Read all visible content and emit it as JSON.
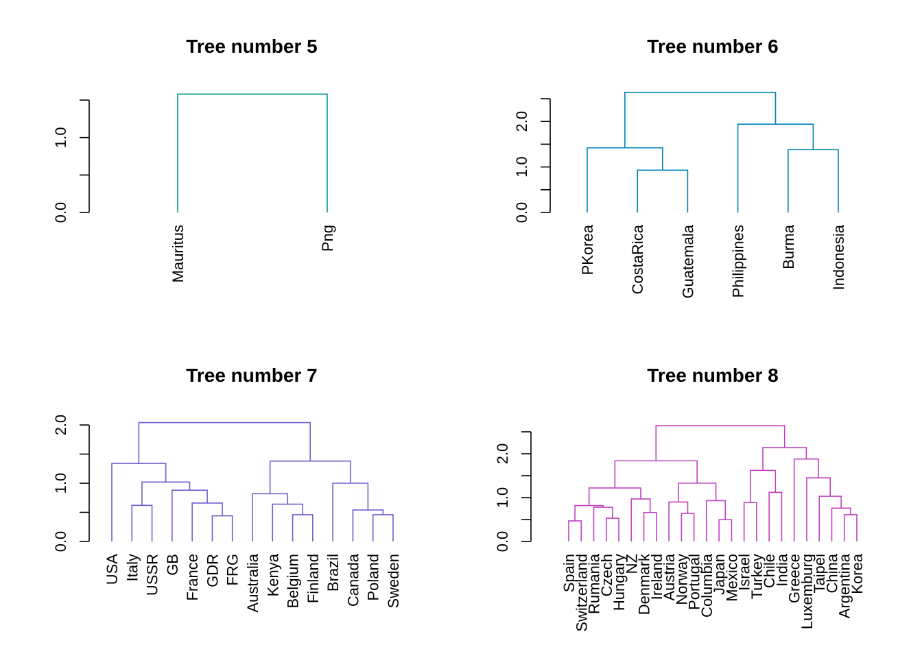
{
  "chart_data": [
    {
      "type": "dendrogram",
      "title": "Tree number 5",
      "color": "#00998A",
      "ylim": [
        0,
        1.5
      ],
      "y_ticks": [
        0,
        0.5,
        1.0,
        1.5
      ],
      "y_tick_labels": [
        "0.0",
        "",
        "1.0",
        ""
      ],
      "leaves": [
        "Mauritus",
        "Png"
      ],
      "merges": [
        {
          "a": 0,
          "b": 1,
          "h": 1.58
        }
      ]
    },
    {
      "type": "dendrogram",
      "title": "Tree number 6",
      "color": "#0082B4",
      "ylim": [
        0,
        2.5
      ],
      "y_ticks": [
        0,
        0.5,
        1.0,
        1.5,
        2.0,
        2.5
      ],
      "y_tick_labels": [
        "0.0",
        "",
        "1.0",
        "",
        "2.0",
        ""
      ],
      "leaves": [
        "PKorea",
        "CostaRica",
        "Guatemala",
        "Philippines",
        "Burma",
        "Indonesia"
      ],
      "merges": [
        {
          "a": 1,
          "b": 2,
          "h": 0.93
        },
        {
          "a": 4,
          "b": 5,
          "h": 1.38
        },
        {
          "a": 0,
          "b": "m0",
          "h": 1.42
        },
        {
          "a": 3,
          "b": "m1",
          "h": 1.94
        },
        {
          "a": "m2",
          "b": "m3",
          "h": 2.64
        }
      ]
    },
    {
      "type": "dendrogram",
      "title": "Tree number 7",
      "color": "#6F5FD0",
      "ylim": [
        0,
        2.0
      ],
      "y_ticks": [
        0,
        0.5,
        1.0,
        1.5,
        2.0
      ],
      "y_tick_labels": [
        "0.0",
        "",
        "1.0",
        "",
        "2.0"
      ],
      "leaves": [
        "USA",
        "Italy",
        "USSR",
        "GB",
        "France",
        "GDR",
        "FRG",
        "Australia",
        "Kenya",
        "Belgium",
        "Finland",
        "Brazil",
        "Canada",
        "Poland",
        "Sweden"
      ],
      "merges": [
        {
          "a": 5,
          "b": 6,
          "h": 0.44
        },
        {
          "a": 13,
          "b": 14,
          "h": 0.46
        },
        {
          "a": 9,
          "b": 10,
          "h": 0.46
        },
        {
          "a": 12,
          "b": "m1",
          "h": 0.54
        },
        {
          "a": 1,
          "b": 2,
          "h": 0.62
        },
        {
          "a": 8,
          "b": "m2",
          "h": 0.64
        },
        {
          "a": 4,
          "b": "m0",
          "h": 0.66
        },
        {
          "a": 7,
          "b": "m5",
          "h": 0.82
        },
        {
          "a": 3,
          "b": "m6",
          "h": 0.88
        },
        {
          "a": 11,
          "b": "m3",
          "h": 1.0
        },
        {
          "a": "m4",
          "b": "m8",
          "h": 1.02
        },
        {
          "a": 0,
          "b": "m10",
          "h": 1.34
        },
        {
          "a": "m7",
          "b": "m9",
          "h": 1.38
        },
        {
          "a": "m11",
          "b": "m12",
          "h": 2.04
        }
      ]
    },
    {
      "type": "dendrogram",
      "title": "Tree number 8",
      "color": "#C040C0",
      "ylim": [
        0,
        2.5
      ],
      "y_ticks": [
        0,
        0.5,
        1.0,
        1.5,
        2.0,
        2.5
      ],
      "y_tick_labels": [
        "0.0",
        "",
        "1.0",
        "",
        "2.0",
        ""
      ],
      "leaves": [
        "Spain",
        "Switzerland",
        "Rumania",
        "Czech",
        "Hungary",
        "NZ",
        "Denmark",
        "Ireland",
        "Austria",
        "Norway",
        "Portugal",
        "Columbia",
        "Japan",
        "Mexico",
        "Israel",
        "Turkey",
        "Chile",
        "India",
        "Greece",
        "Luxemburg",
        "Taipei",
        "China",
        "Argentina",
        "Korea"
      ],
      "merges": [
        {
          "a": 0,
          "b": 1,
          "h": 0.47
        },
        {
          "a": 3,
          "b": 4,
          "h": 0.53
        },
        {
          "a": 12,
          "b": 13,
          "h": 0.5
        },
        {
          "a": 22,
          "b": 23,
          "h": 0.61
        },
        {
          "a": 9,
          "b": 10,
          "h": 0.64
        },
        {
          "a": 6,
          "b": 7,
          "h": 0.66
        },
        {
          "a": 21,
          "b": "m3",
          "h": 0.76
        },
        {
          "a": 2,
          "b": "m1",
          "h": 0.78
        },
        {
          "a": "m0",
          "b": "m7",
          "h": 0.82
        },
        {
          "a": 14,
          "b": 15,
          "h": 0.89
        },
        {
          "a": 8,
          "b": "m4",
          "h": 0.9
        },
        {
          "a": 11,
          "b": "m2",
          "h": 0.93
        },
        {
          "a": 5,
          "b": "m5",
          "h": 0.97
        },
        {
          "a": 20,
          "b": "m6",
          "h": 1.03
        },
        {
          "a": 16,
          "b": 17,
          "h": 1.12
        },
        {
          "a": "m8",
          "b": "m12",
          "h": 1.22
        },
        {
          "a": "m10",
          "b": "m11",
          "h": 1.33
        },
        {
          "a": 19,
          "b": "m13",
          "h": 1.45
        },
        {
          "a": "m9",
          "b": "m14",
          "h": 1.62
        },
        {
          "a": "m15",
          "b": "m16",
          "h": 1.84
        },
        {
          "a": 18,
          "b": "m17",
          "h": 1.88
        },
        {
          "a": "m18",
          "b": "m20",
          "h": 2.14
        },
        {
          "a": "m19",
          "b": "m21",
          "h": 2.64
        }
      ]
    }
  ]
}
